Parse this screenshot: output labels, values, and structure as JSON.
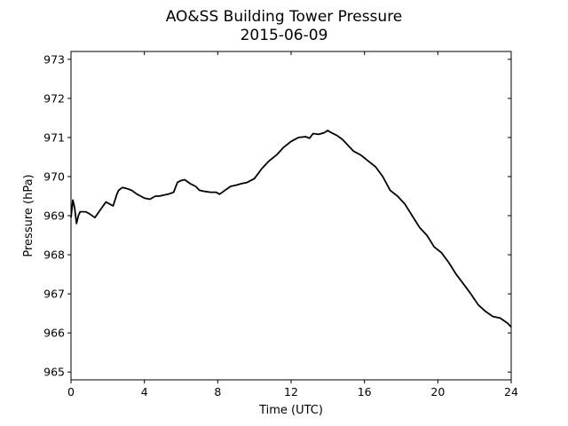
{
  "chart_data": {
    "type": "line",
    "title": "AO&SS Building Tower Pressure",
    "subtitle": "2015-06-09",
    "xlabel": "Time (UTC)",
    "ylabel": "Pressure (hPa)",
    "xlim": [
      0,
      24
    ],
    "ylim": [
      964.8,
      973.2
    ],
    "xticks": [
      0,
      4,
      8,
      12,
      16,
      20,
      24
    ],
    "yticks": [
      965,
      966,
      967,
      968,
      969,
      970,
      971,
      972,
      973
    ],
    "grid": false,
    "line_color": "#000000",
    "series": [
      {
        "x": [
          0,
          0.1,
          0.2,
          0.3,
          0.4,
          0.5,
          0.6,
          0.8,
          1.0,
          1.3,
          1.6,
          1.9,
          2.1,
          2.3,
          2.4,
          2.5,
          2.6,
          2.8,
          3.0,
          3.3,
          3.6,
          3.8,
          4.0,
          4.3,
          4.6,
          4.8,
          5.0,
          5.3,
          5.6,
          5.8,
          6.0,
          6.2,
          6.5,
          6.8,
          7.0,
          7.3,
          7.6,
          7.9,
          8.1,
          8.4,
          8.7,
          9.0,
          9.3,
          9.6,
          10.0,
          10.4,
          10.8,
          11.2,
          11.6,
          12.0,
          12.4,
          12.8,
          13.0,
          13.2,
          13.5,
          13.8,
          14.0,
          14.2,
          14.5,
          14.8,
          15.1,
          15.4,
          15.8,
          16.2,
          16.6,
          17.0,
          17.4,
          17.8,
          18.2,
          18.6,
          19.0,
          19.4,
          19.8,
          20.2,
          20.6,
          21.0,
          21.4,
          21.8,
          22.2,
          22.6,
          23.0,
          23.4,
          23.8,
          24.0
        ],
        "y": [
          968.95,
          969.4,
          969.2,
          968.8,
          969.0,
          969.1,
          969.1,
          969.1,
          969.05,
          968.95,
          969.15,
          969.35,
          969.3,
          969.25,
          969.4,
          969.55,
          969.65,
          969.72,
          969.7,
          969.65,
          969.55,
          969.5,
          969.45,
          969.42,
          969.5,
          969.5,
          969.52,
          969.55,
          969.6,
          969.85,
          969.9,
          969.92,
          969.82,
          969.75,
          969.65,
          969.62,
          969.6,
          969.6,
          969.55,
          969.65,
          969.75,
          969.78,
          969.82,
          969.85,
          969.95,
          970.2,
          970.4,
          970.55,
          970.75,
          970.9,
          971.0,
          971.02,
          970.98,
          971.1,
          971.08,
          971.12,
          971.18,
          971.12,
          971.05,
          970.95,
          970.8,
          970.65,
          970.55,
          970.4,
          970.25,
          970.0,
          969.65,
          969.5,
          969.3,
          969.0,
          968.7,
          968.5,
          968.2,
          968.05,
          967.8,
          967.5,
          967.25,
          967.0,
          966.72,
          966.55,
          966.42,
          966.38,
          966.25,
          966.15
        ]
      }
    ]
  }
}
